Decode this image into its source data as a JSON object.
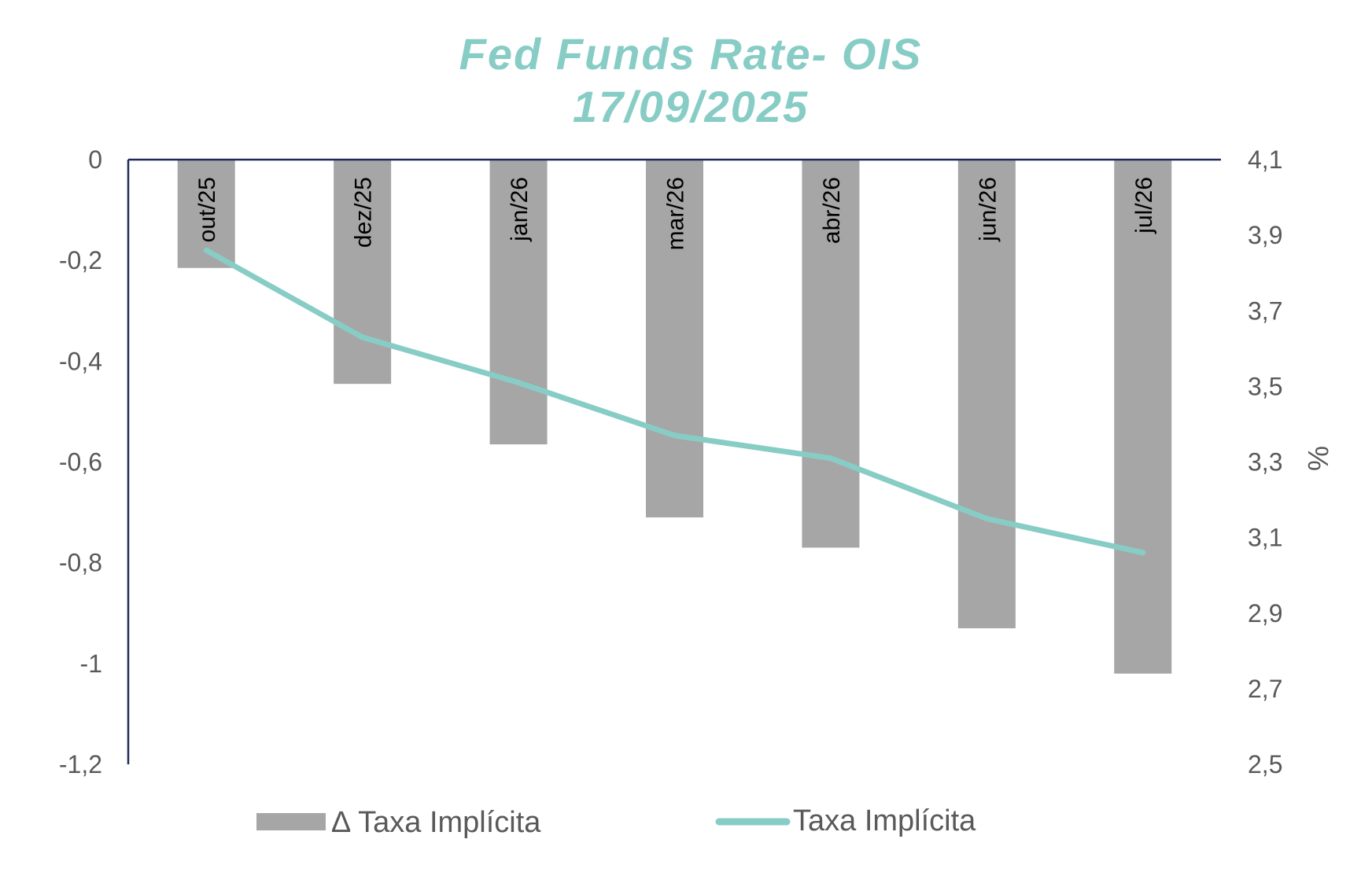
{
  "chart_data": {
    "type": "bar",
    "title": "Fed Funds Rate- OIS",
    "subtitle": "17/09/2025",
    "categories": [
      "out/25",
      "dez/25",
      "jan/26",
      "mar/26",
      "abr/26",
      "jun/26",
      "jul/26"
    ],
    "series": [
      {
        "name": "∆ Taxa Implícita",
        "type": "bar",
        "axis": "left",
        "color": "#a6a6a6",
        "values": [
          -0.215,
          -0.445,
          -0.565,
          -0.71,
          -0.77,
          -0.93,
          -1.02
        ]
      },
      {
        "name": "Taxa Implícita",
        "type": "line",
        "axis": "right",
        "color": "#87cdc5",
        "values": [
          3.86,
          3.63,
          3.51,
          3.37,
          3.31,
          3.15,
          3.06
        ]
      }
    ],
    "y_left": {
      "min": -1.2,
      "max": 0,
      "ticks": [
        0,
        -0.2,
        -0.4,
        -0.6,
        -0.8,
        -1,
        -1.2
      ],
      "tick_labels": [
        "0",
        "-0,2",
        "-0,4",
        "-0,6",
        "-0,8",
        "-1",
        "-1,2"
      ]
    },
    "y_right": {
      "min": 2.5,
      "max": 4.1,
      "label": "%",
      "ticks": [
        4.1,
        3.9,
        3.7,
        3.5,
        3.3,
        3.1,
        2.9,
        2.7,
        2.5
      ],
      "tick_labels": [
        "4,1",
        "3,9",
        "3,7",
        "3,5",
        "3,3",
        "3,1",
        "2,9",
        "2,7",
        "2,5"
      ]
    },
    "grid": false,
    "legend_position": "bottom",
    "axis_color": "#1f2a5c",
    "title_color": "#87cdc5"
  }
}
